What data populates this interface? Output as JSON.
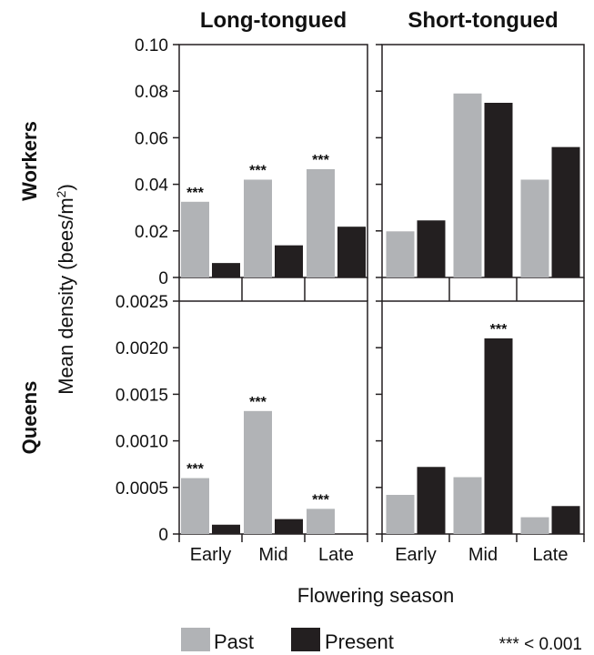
{
  "chart_data": {
    "type": "bar",
    "ylabel": "Mean density (bees/m",
    "ylabel_sup": "2",
    "ylabel_end": ")",
    "xlabel": "Flowering season",
    "columns": [
      "Long-tongued",
      "Short-tongued"
    ],
    "rows": [
      {
        "label": "Workers",
        "ylim": [
          0,
          0.1
        ],
        "yticks": [
          "0",
          "0.02",
          "0.04",
          "0.06",
          "0.08",
          "0.10"
        ]
      },
      {
        "label": "Queens",
        "ylim": [
          0,
          0.0025
        ],
        "yticks": [
          "0",
          "0.0005",
          "0.0010",
          "0.0015",
          "0.0020",
          "0.0025"
        ]
      }
    ],
    "categories": [
      "Early",
      "Mid",
      "Late"
    ],
    "series_colors": {
      "Past": "#b1b3b6",
      "Present": "#231f20"
    },
    "legend": [
      {
        "name": "Past",
        "color": "#b1b3b6"
      },
      {
        "name": "Present",
        "color": "#231f20"
      }
    ],
    "significance_note": "*** < 0.001",
    "significance_marker": "***",
    "panels": [
      {
        "row": "Workers",
        "column": "Long-tongued",
        "past": [
          0.0325,
          0.042,
          0.0465
        ],
        "present": [
          0.0062,
          0.0138,
          0.0218
        ],
        "significant": [
          "Early",
          "Mid",
          "Late"
        ]
      },
      {
        "row": "Workers",
        "column": "Short-tongued",
        "past": [
          0.0198,
          0.079,
          0.042
        ],
        "present": [
          0.0245,
          0.075,
          0.056
        ],
        "significant": []
      },
      {
        "row": "Queens",
        "column": "Long-tongued",
        "past": [
          0.0006,
          0.00132,
          0.00027
        ],
        "present": [
          0.0001,
          0.00016,
          0.0
        ],
        "significant": [
          "Early",
          "Mid",
          "Late"
        ]
      },
      {
        "row": "Queens",
        "column": "Short-tongued",
        "past": [
          0.00042,
          0.00061,
          0.00018
        ],
        "present": [
          0.00072,
          0.0021,
          0.0003
        ],
        "significant": [
          "Mid"
        ]
      }
    ]
  }
}
